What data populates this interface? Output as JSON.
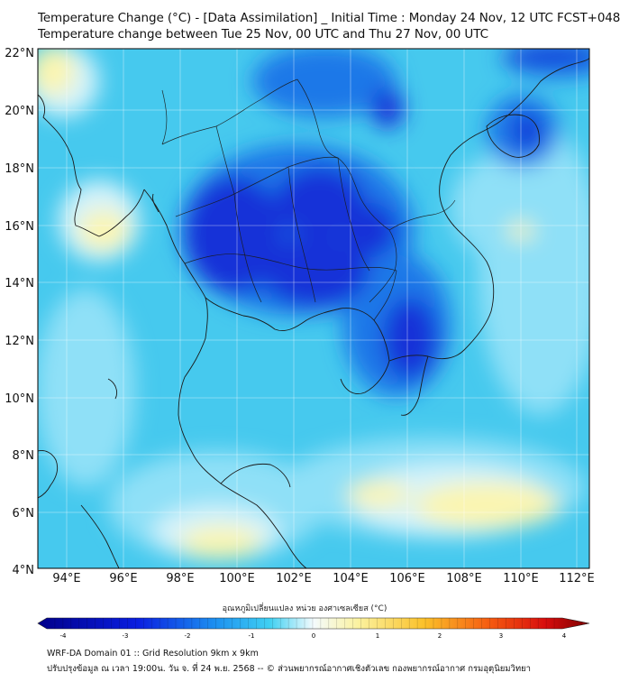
{
  "header": {
    "title_line1": "Temperature Change (°C) - [Data Assimilation] _ Initial Time : Monday 24 Nov, 12 UTC FCST+048",
    "title_line2": "Temperature change between Tue 25 Nov, 00 UTC and Thu 27 Nov, 00 UTC"
  },
  "map": {
    "lat_ticks": [
      "22°N",
      "20°N",
      "18°N",
      "16°N",
      "14°N",
      "12°N",
      "10°N",
      "8°N",
      "6°N",
      "4°N"
    ],
    "lon_ticks": [
      "94°E",
      "96°E",
      "98°E",
      "100°E",
      "102°E",
      "104°E",
      "106°E",
      "108°E",
      "110°E",
      "112°E"
    ],
    "colors": {
      "background": "#46c9ee",
      "light_blue": "#8fe0f7",
      "pale": "#d6f3fa",
      "yellow": "#fbf5b0",
      "dark_blue": "#1230d8",
      "medium_blue": "#1e78e8",
      "coast": "#1a1a1a"
    }
  },
  "colorbar": {
    "label": "อุณหภูมิเปลี่ยนแปลง หน่วย องศาเซลเซียส (°C)",
    "ticks": [
      "-4",
      "-3",
      "-2",
      "-1",
      "0",
      "1",
      "2",
      "3",
      "4"
    ],
    "min": -4,
    "max": 4
  },
  "footer": {
    "line1": "WRF-DA Domain 01 :: Grid Resolution 9km x 9km",
    "line2": "ปรับปรุงข้อมูล ณ เวลา 19:00น. วัน จ. ที่ 24 พ.ย. 2568 -- © ส่วนพยากรณ์อากาศเชิงตัวเลข กองพยากรณ์อากาศ กรมอุตุนิยมวิทยา"
  }
}
